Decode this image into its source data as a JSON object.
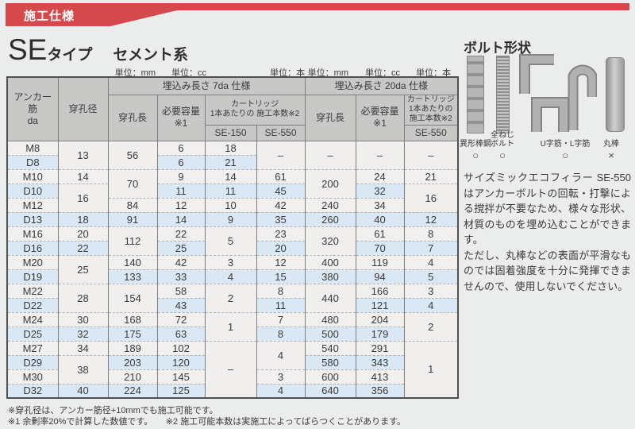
{
  "banner": {
    "label": "施工仕様",
    "color": "#d5494c"
  },
  "title": {
    "se": "SE",
    "type_suffix": "タイプ",
    "category": "セメント系"
  },
  "units": {
    "left": [
      "単位：mm",
      "単位：cc",
      "単位：本"
    ],
    "right": [
      "単位：mm",
      "単位：cc",
      "単位：本"
    ]
  },
  "table": {
    "header": {
      "anchor": "アンカー筋\nda",
      "hole_dia": "穿孔径",
      "embed7": "埋込み長さ 7da 仕様",
      "embed20": "埋込み長さ 20da 仕様",
      "hole_len7": "穿孔長",
      "capacity7": "必要容量※1",
      "cartridge7": "カートリッジ\n1本あたりの 施工本数※2",
      "se150": "SE-150",
      "se550_7": "SE-550",
      "hole_len20": "穿孔長",
      "capacity20": "必要容量※1",
      "cartridge20": "カートリッジ\n1本あたりの\n施工本数※2",
      "se550_20": "SE-550"
    },
    "columns": [
      "アンカー筋da",
      "穿孔径",
      "7da穿孔長",
      "7da必要容量",
      "7da SE-150",
      "7da SE-550",
      "20da穿孔長",
      "20da必要容量",
      "20da SE-550"
    ],
    "rows": [
      {
        "cells": [
          "M8",
          {
            "t": "13",
            "rs": 2
          },
          {
            "t": "56",
            "rs": 2
          },
          "6",
          "18",
          {
            "t": "–",
            "rs": 2
          },
          {
            "t": "–",
            "rs": 2
          },
          {
            "t": "–",
            "rs": 2
          },
          {
            "t": "–",
            "rs": 2
          }
        ]
      },
      {
        "cells": [
          "D8",
          "6",
          "21"
        ]
      },
      {
        "cells": [
          "M10",
          "14",
          {
            "t": "70",
            "rs": 2
          },
          "9",
          "14",
          "61",
          {
            "t": "200",
            "rs": 2
          },
          "24",
          "21"
        ]
      },
      {
        "cells": [
          "D10",
          {
            "t": "16",
            "rs": 2
          },
          "11",
          "11",
          "45",
          "32",
          {
            "t": "16",
            "rs": 2
          }
        ]
      },
      {
        "cells": [
          "M12",
          "84",
          "12",
          "10",
          "42",
          "240",
          "34"
        ]
      },
      {
        "cells": [
          "D13",
          "18",
          "91",
          "14",
          "9",
          "35",
          "260",
          "40",
          "12"
        ]
      },
      {
        "cells": [
          "M16",
          "20",
          {
            "t": "112",
            "rs": 2
          },
          "22",
          {
            "t": "5",
            "rs": 2
          },
          "23",
          {
            "t": "320",
            "rs": 2
          },
          "61",
          "8"
        ]
      },
      {
        "cells": [
          "D16",
          "22",
          "25",
          "20",
          "70",
          "7"
        ]
      },
      {
        "cells": [
          "M20",
          {
            "t": "25",
            "rs": 2
          },
          "140",
          "42",
          "3",
          "12",
          "400",
          "119",
          "4"
        ]
      },
      {
        "cells": [
          "D19",
          "133",
          "33",
          "4",
          "15",
          "380",
          "94",
          "5"
        ]
      },
      {
        "cells": [
          "M22",
          {
            "t": "28",
            "rs": 2
          },
          {
            "t": "154",
            "rs": 2
          },
          "58",
          {
            "t": "2",
            "rs": 2
          },
          "8",
          {
            "t": "440",
            "rs": 2
          },
          "166",
          "3"
        ]
      },
      {
        "cells": [
          "D22",
          "43",
          "11",
          "121",
          "4"
        ]
      },
      {
        "cells": [
          "M24",
          "30",
          "168",
          "72",
          {
            "t": "1",
            "rs": 2
          },
          "7",
          "480",
          "204",
          {
            "t": "2",
            "rs": 2
          }
        ]
      },
      {
        "cells": [
          "D25",
          "32",
          "175",
          "63",
          "8",
          "500",
          "179"
        ]
      },
      {
        "cells": [
          "M27",
          "34",
          "189",
          "102",
          {
            "t": "–",
            "rs": 4
          },
          {
            "t": "4",
            "rs": 2
          },
          "540",
          "291",
          {
            "t": "1",
            "rs": 4
          }
        ]
      },
      {
        "cells": [
          "D29",
          {
            "t": "38",
            "rs": 2
          },
          "203",
          "120",
          "580",
          "343"
        ]
      },
      {
        "cells": [
          "M30",
          "210",
          "145",
          "3",
          "600",
          "413"
        ]
      },
      {
        "cells": [
          "D32",
          "40",
          "224",
          "125",
          "4",
          "640",
          "356"
        ]
      }
    ]
  },
  "bolt_panel": {
    "title": "ボルト形状",
    "items": [
      {
        "label": "異形棒鋼",
        "mark": "○"
      },
      {
        "label": "全ねじ\nボルト",
        "mark": "○"
      },
      {
        "label": "U字筋・L字筋",
        "mark": "○"
      },
      {
        "label": "丸棒",
        "mark": "×"
      }
    ],
    "description": "サイズミックエコフィラー SE-550はアンカーボルトの回転・打撃による撹拌が不要なため、様々な形状、材質のものを埋め込むことができます。\nただし、丸棒などの表面が平滑なものでは固着強度を十分に発揮できませんので、使用しないでください。"
  },
  "notes": [
    "※穿孔径は、アンカー筋径+10mmでも施工可能です。",
    "※1 余剰率20%で計算した数値です。　　※2 施工可能本数は実施工によってばらつくことがあります。"
  ],
  "colors": {
    "accent_red": "#d5494c",
    "page_bg": "#ebecec",
    "header_gray": "#c8c8c7",
    "row_light": "#f1f0ee",
    "row_blue": "#d9e8f4"
  }
}
